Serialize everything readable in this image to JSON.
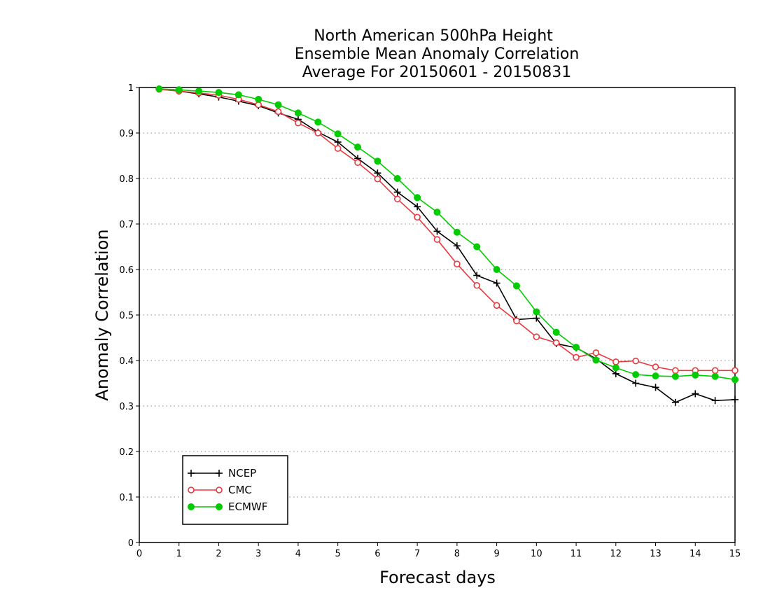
{
  "chart_data": {
    "type": "line",
    "title_lines": [
      "North American 500hPa Height",
      "Ensemble Mean Anomaly Correlation",
      "Average For 20150601 - 20150831"
    ],
    "xlabel": "Forecast days",
    "ylabel": "Anomaly Correlation",
    "xlim": [
      0,
      15
    ],
    "ylim": [
      0,
      1
    ],
    "x_ticks": [
      "0",
      "1",
      "2",
      "3",
      "4",
      "5",
      "6",
      "7",
      "8",
      "9",
      "10",
      "11",
      "12",
      "13",
      "14",
      "15"
    ],
    "y_ticks": [
      "0",
      "0.1",
      "0.2",
      "0.3",
      "0.4",
      "0.5",
      "0.6",
      "0.7",
      "0.8",
      "0.9",
      "1"
    ],
    "grid": "horizontal dotted",
    "legend_position": "bottom-left",
    "x": [
      0.5,
      1,
      1.5,
      2,
      2.5,
      3,
      3.5,
      4,
      4.5,
      5,
      5.5,
      6,
      6.5,
      7,
      7.5,
      8,
      8.5,
      9,
      9.5,
      10,
      10.5,
      11,
      11.5,
      12,
      12.5,
      13,
      13.5,
      14,
      14.5,
      15
    ],
    "series": [
      {
        "name": "NCEP",
        "color": "#000000",
        "marker": "plus",
        "values": [
          0.997,
          0.992,
          0.986,
          0.979,
          0.97,
          0.96,
          0.944,
          0.93,
          0.902,
          0.88,
          0.844,
          0.812,
          0.77,
          0.738,
          0.684,
          0.652,
          0.587,
          0.57,
          0.49,
          0.493,
          0.437,
          0.428,
          0.404,
          0.371,
          0.35,
          0.341,
          0.308,
          0.327,
          0.312,
          0.314
        ]
      },
      {
        "name": "CMC",
        "color": "#e8383d",
        "marker": "open-circle",
        "values": [
          0.996,
          0.992,
          0.988,
          0.983,
          0.974,
          0.962,
          0.947,
          0.922,
          0.9,
          0.866,
          0.835,
          0.799,
          0.755,
          0.715,
          0.666,
          0.612,
          0.565,
          0.521,
          0.487,
          0.452,
          0.439,
          0.407,
          0.417,
          0.397,
          0.399,
          0.386,
          0.378,
          0.378,
          0.378,
          0.378
        ]
      },
      {
        "name": "ECMWF",
        "color": "#00cc00",
        "marker": "filled-circle",
        "values": [
          0.997,
          0.995,
          0.992,
          0.989,
          0.984,
          0.974,
          0.962,
          0.944,
          0.924,
          0.898,
          0.869,
          0.838,
          0.8,
          0.758,
          0.726,
          0.682,
          0.65,
          0.6,
          0.564,
          0.507,
          0.462,
          0.429,
          0.401,
          0.384,
          0.369,
          0.366,
          0.365,
          0.368,
          0.365,
          0.358
        ]
      }
    ]
  }
}
